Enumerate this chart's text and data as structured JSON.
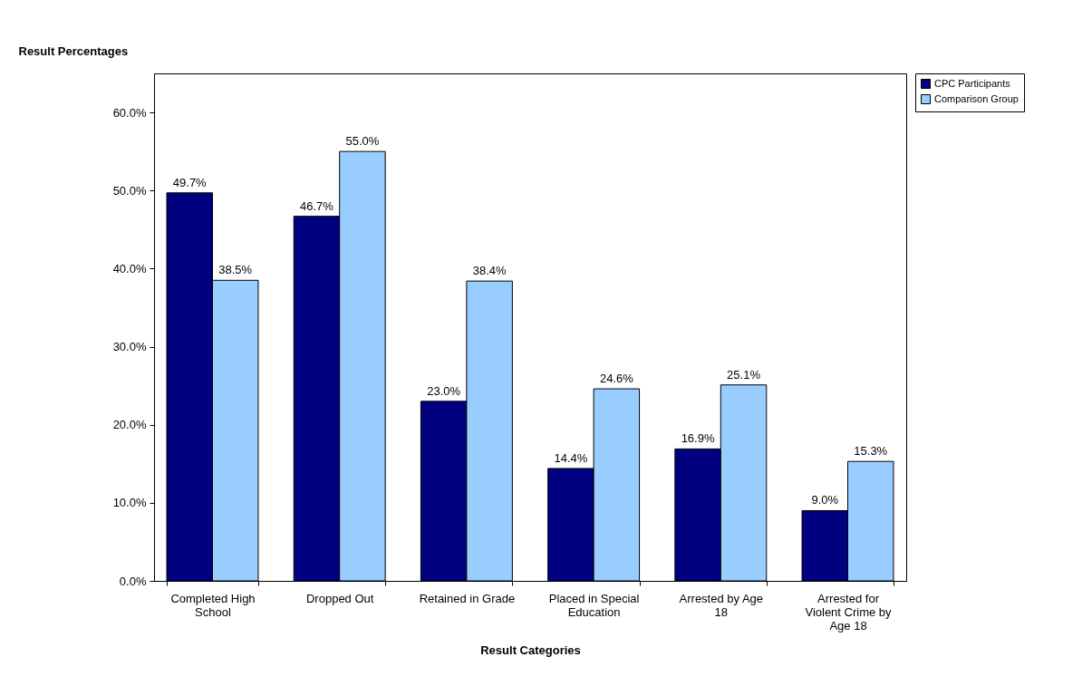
{
  "chart_data": {
    "type": "bar",
    "ylabel": "Result Percentages",
    "xlabel": "Result Categories",
    "categories": [
      "Completed High School",
      "Dropped Out",
      "Retained in Grade",
      "Placed in Special Education",
      "Arrested by Age 18",
      "Arrested for Violent Crime by Age 18"
    ],
    "series": [
      {
        "name": "CPC Participants",
        "color": "#000080",
        "values": [
          49.7,
          46.7,
          23.0,
          14.4,
          16.9,
          9.0
        ],
        "value_labels": [
          "49.7%",
          "46.7%",
          "23.0%",
          "14.4%",
          "16.9%",
          "9.0%"
        ]
      },
      {
        "name": "Comparison Group",
        "color": "#99ccff",
        "values": [
          38.5,
          55.0,
          38.4,
          24.6,
          25.1,
          15.3
        ],
        "value_labels": [
          "38.5%",
          "55.0%",
          "38.4%",
          "24.6%",
          "25.1%",
          "15.3%"
        ]
      }
    ],
    "ylim": [
      0,
      65
    ],
    "yticks": [
      {
        "value": 0,
        "label": "0.0%"
      },
      {
        "value": 10,
        "label": "10.0%"
      },
      {
        "value": 20,
        "label": "20.0%"
      },
      {
        "value": 30,
        "label": "30.0%"
      },
      {
        "value": 40,
        "label": "40.0%"
      },
      {
        "value": 50,
        "label": "50.0%"
      },
      {
        "value": 60,
        "label": "60.0%"
      }
    ],
    "grid": false,
    "legend": "right"
  }
}
